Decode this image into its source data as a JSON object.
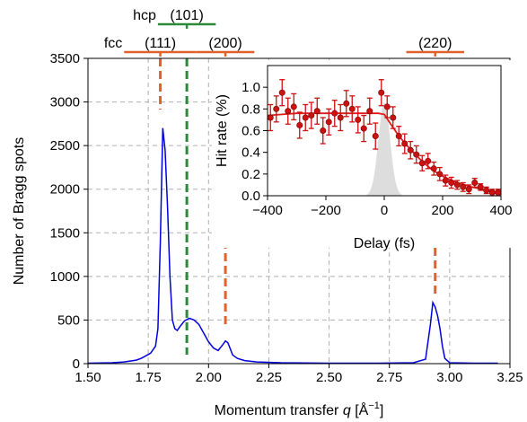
{
  "chart_data": [
    {
      "type": "line",
      "xlabel": "Momentum transfer",
      "xlabel_var": "q",
      "xlabel_unit": "[Å",
      "xlabel_unit_sup": "−1",
      "xlabel_unit_close": "]",
      "ylabel": "Number of Bragg spots",
      "xlim": [
        1.5,
        3.25
      ],
      "ylim": [
        0,
        3500
      ],
      "xticks": [
        1.5,
        1.75,
        2.0,
        2.25,
        2.5,
        2.75,
        3.0,
        3.25
      ],
      "xtick_labels": [
        "1.50",
        "1.75",
        "2.00",
        "2.25",
        "2.50",
        "2.75",
        "3.00",
        "3.25"
      ],
      "yticks": [
        0,
        500,
        1000,
        1500,
        2000,
        2500,
        3000,
        3500
      ],
      "ytick_labels": [
        "0",
        "500",
        "1000",
        "1500",
        "2000",
        "2500",
        "3000",
        "3500"
      ],
      "grid": true,
      "series": [
        {
          "color": "#0000dd",
          "x": [
            1.5,
            1.6,
            1.65,
            1.7,
            1.72,
            1.74,
            1.76,
            1.78,
            1.79,
            1.8,
            1.81,
            1.82,
            1.83,
            1.84,
            1.85,
            1.86,
            1.87,
            1.88,
            1.9,
            1.92,
            1.94,
            1.96,
            1.98,
            2.0,
            2.02,
            2.04,
            2.06,
            2.07,
            2.08,
            2.09,
            2.1,
            2.12,
            2.15,
            2.2,
            2.3,
            2.5,
            2.7,
            2.85,
            2.9,
            2.92,
            2.93,
            2.94,
            2.95,
            2.96,
            2.97,
            2.98,
            3.0,
            3.1,
            3.2
          ],
          "y": [
            5,
            10,
            20,
            40,
            60,
            90,
            120,
            200,
            400,
            1400,
            2700,
            2450,
            1800,
            1000,
            500,
            400,
            380,
            420,
            490,
            520,
            500,
            450,
            350,
            250,
            180,
            150,
            220,
            260,
            240,
            170,
            100,
            60,
            35,
            20,
            10,
            5,
            5,
            10,
            50,
            450,
            700,
            650,
            550,
            400,
            200,
            60,
            10,
            5,
            5
          ]
        }
      ],
      "peak_groups": [
        {
          "phase": "fcc",
          "hkl": "(111)",
          "x": 1.8,
          "color": "#e0622a",
          "bar": [
            1.65,
            1.95
          ]
        },
        {
          "phase": "hcp",
          "hkl": "(101)",
          "x": 1.91,
          "color": "#2a8a3a",
          "bar": [
            1.79,
            2.03
          ]
        },
        {
          "phase": "",
          "hkl": "(200)",
          "x": 2.07,
          "color": "#e0622a",
          "bar": [
            1.95,
            2.19
          ]
        },
        {
          "phase": "",
          "hkl": "(220)",
          "x": 2.94,
          "color": "#e0622a",
          "bar": [
            2.82,
            3.06
          ]
        }
      ]
    },
    {
      "type": "scatter",
      "xlabel": "Delay (fs)",
      "ylabel": "Hit rate (%)",
      "xlim": [
        -400,
        400
      ],
      "ylim": [
        0,
        1.2
      ],
      "xticks": [
        -400,
        -200,
        0,
        200,
        400
      ],
      "xtick_labels": [
        "−400",
        "−200",
        "0",
        "200",
        "400"
      ],
      "yticks": [
        0,
        0.2,
        0.4,
        0.6,
        0.8,
        1.0
      ],
      "ytick_labels": [
        "0.0",
        "0.2",
        "0.4",
        "0.6",
        "0.8",
        "1.0"
      ],
      "grid": false,
      "points": {
        "color": "#cc1111",
        "x": [
          -390,
          -370,
          -350,
          -330,
          -310,
          -290,
          -270,
          -250,
          -230,
          -210,
          -190,
          -170,
          -150,
          -130,
          -110,
          -90,
          -70,
          -50,
          -30,
          -10,
          10,
          30,
          50,
          70,
          90,
          110,
          130,
          150,
          170,
          190,
          210,
          230,
          250,
          270,
          290,
          310,
          330,
          350,
          370,
          390
        ],
        "y": [
          0.72,
          0.8,
          0.95,
          0.78,
          0.82,
          0.65,
          0.72,
          0.74,
          0.78,
          0.6,
          0.68,
          0.76,
          0.72,
          0.85,
          0.8,
          0.7,
          0.62,
          0.78,
          0.55,
          0.95,
          0.82,
          0.72,
          0.55,
          0.48,
          0.42,
          0.38,
          0.3,
          0.32,
          0.25,
          0.2,
          0.14,
          0.12,
          0.1,
          0.08,
          0.06,
          0.12,
          0.08,
          0.05,
          0.03,
          0.03
        ],
        "err": [
          0.12,
          0.12,
          0.12,
          0.12,
          0.12,
          0.12,
          0.12,
          0.12,
          0.12,
          0.12,
          0.12,
          0.12,
          0.12,
          0.12,
          0.12,
          0.12,
          0.12,
          0.12,
          0.12,
          0.12,
          0.1,
          0.1,
          0.09,
          0.09,
          0.08,
          0.08,
          0.07,
          0.07,
          0.06,
          0.06,
          0.05,
          0.05,
          0.04,
          0.04,
          0.04,
          0.04,
          0.03,
          0.03,
          0.03,
          0.03
        ]
      },
      "fit": {
        "color": "#e31a1a",
        "x": [
          -400,
          -350,
          -300,
          -250,
          -200,
          -150,
          -100,
          -50,
          -20,
          0,
          25,
          50,
          75,
          100,
          125,
          150,
          175,
          200,
          250,
          300,
          350,
          400
        ],
        "y": [
          0.74,
          0.75,
          0.76,
          0.76,
          0.76,
          0.76,
          0.76,
          0.76,
          0.76,
          0.75,
          0.65,
          0.55,
          0.47,
          0.4,
          0.33,
          0.27,
          0.22,
          0.18,
          0.12,
          0.08,
          0.05,
          0.03
        ]
      },
      "pulse": {
        "color": "#dddddd",
        "center": 0,
        "width": 20,
        "peak": 0.86
      }
    }
  ]
}
